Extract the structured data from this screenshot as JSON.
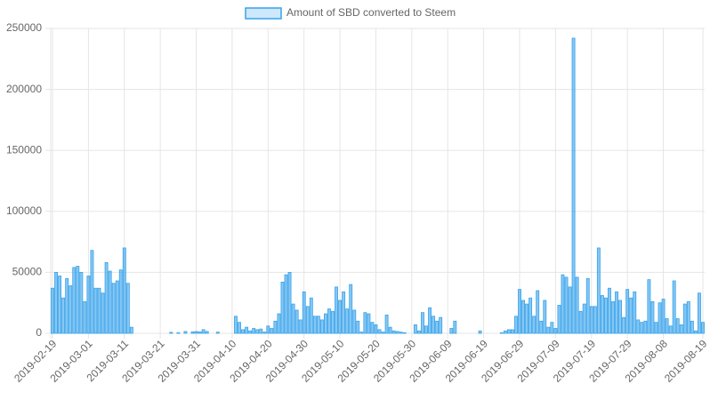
{
  "chart_data": {
    "type": "bar",
    "series": [
      {
        "name": "Amount of SBD converted to Steem",
        "color": "#36a2eb",
        "values": [
          37000,
          50000,
          47000,
          29000,
          45000,
          39000,
          54000,
          55000,
          50000,
          26000,
          47000,
          68000,
          37000,
          37000,
          33000,
          58000,
          51000,
          41000,
          43000,
          52000,
          70000,
          41000,
          5000,
          0,
          0,
          0,
          0,
          0,
          0,
          0,
          0,
          0,
          0,
          800,
          0,
          500,
          0,
          1500,
          0,
          1200,
          1500,
          1200,
          3000,
          1500,
          0,
          0,
          1000,
          0,
          0,
          0,
          0,
          14000,
          9000,
          3000,
          5000,
          2000,
          4000,
          3000,
          3500,
          1000,
          6000,
          4000,
          10000,
          16000,
          42000,
          48000,
          50000,
          24000,
          19000,
          11000,
          34000,
          22000,
          29000,
          14000,
          14000,
          11000,
          16000,
          20000,
          18000,
          38000,
          27000,
          34000,
          20000,
          40000,
          19000,
          10000,
          1000,
          17000,
          16000,
          9000,
          7000,
          3000,
          1000,
          15000,
          5000,
          2000,
          1500,
          1000,
          500,
          0,
          0,
          7000,
          2000,
          17000,
          6000,
          21000,
          14000,
          10000,
          13000,
          0,
          0,
          4000,
          10000,
          0,
          0,
          0,
          0,
          0,
          0,
          2000,
          0,
          0,
          0,
          0,
          0,
          500,
          2000,
          3000,
          3000,
          14000,
          36000,
          27000,
          24000,
          29000,
          14000,
          35000,
          10000,
          27000,
          5000,
          9000,
          4000,
          23000,
          48000,
          46000,
          38000,
          242000,
          46000,
          18000,
          24000,
          45000,
          22000,
          22000,
          70000,
          31000,
          29000,
          37000,
          26000,
          34000,
          27000,
          13000,
          36000,
          29000,
          34000,
          11000,
          9000,
          10000,
          44000,
          26000,
          9000,
          25000,
          28000,
          12000,
          6000,
          43000,
          12000,
          7000,
          24000,
          26000,
          10000,
          2000,
          33000,
          9000
        ]
      }
    ],
    "categories": [
      "2019-02-19",
      null,
      null,
      null,
      null,
      null,
      null,
      null,
      null,
      null,
      "2019-03-01",
      null,
      null,
      null,
      null,
      null,
      null,
      null,
      null,
      null,
      "2019-03-11",
      null,
      null,
      null,
      null,
      null,
      null,
      null,
      null,
      null,
      "2019-03-21",
      null,
      null,
      null,
      null,
      null,
      null,
      null,
      null,
      null,
      "2019-03-31",
      null,
      null,
      null,
      null,
      null,
      null,
      null,
      null,
      null,
      "2019-04-10",
      null,
      null,
      null,
      null,
      null,
      null,
      null,
      null,
      null,
      "2019-04-20",
      null,
      null,
      null,
      null,
      null,
      null,
      null,
      null,
      null,
      "2019-04-30",
      null,
      null,
      null,
      null,
      null,
      null,
      null,
      null,
      null,
      "2019-05-10",
      null,
      null,
      null,
      null,
      null,
      null,
      null,
      null,
      null,
      "2019-05-20",
      null,
      null,
      null,
      null,
      null,
      null,
      null,
      null,
      null,
      "2019-05-30",
      null,
      null,
      null,
      null,
      null,
      null,
      null,
      null,
      null,
      "2019-06-09",
      null,
      null,
      null,
      null,
      null,
      null,
      null,
      null,
      null,
      "2019-06-19",
      null,
      null,
      null,
      null,
      null,
      null,
      null,
      null,
      null,
      "2019-06-29",
      null,
      null,
      null,
      null,
      null,
      null,
      null,
      null,
      null,
      "2019-07-09",
      null,
      null,
      null,
      null,
      null,
      null,
      null,
      null,
      null,
      "2019-07-19",
      null,
      null,
      null,
      null,
      null,
      null,
      null,
      null,
      null,
      "2019-07-29",
      null,
      null,
      null,
      null,
      null,
      null,
      null,
      null,
      null,
      "2019-08-08",
      null,
      null,
      null,
      null,
      null,
      null,
      null,
      null,
      null,
      null,
      "2019-08-19"
    ],
    "ylim": [
      0,
      250000
    ],
    "yticks": [
      0,
      50000,
      100000,
      150000,
      200000,
      250000
    ],
    "grid": true,
    "legend": "top"
  }
}
